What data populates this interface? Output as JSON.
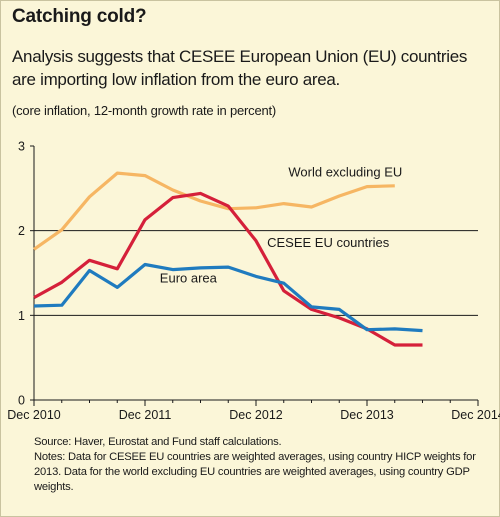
{
  "title": "Catching cold?",
  "subtitle": "Analysis suggests that CESEE European Union (EU) countries are importing low inflation from the euro area.",
  "unit_note": "(core inflation, 12-month growth rate in percent)",
  "footnotes": {
    "source": "Source: Haver, Eurostat and Fund staff calculations.",
    "notes": "Notes:  Data for CESEE EU countries are weighted averages, using country HICP weights for 2013. Data for the world excluding EU countries are weighted averages, using country GDP weights."
  },
  "chart_data": {
    "type": "line",
    "title": "Catching cold?",
    "ylabel": "",
    "xlabel": "",
    "xlim": [
      0,
      48
    ],
    "ylim": [
      0,
      3
    ],
    "x_ticks": [
      {
        "pos": 0,
        "label": "Dec 2010"
      },
      {
        "pos": 12,
        "label": "Dec 2011"
      },
      {
        "pos": 24,
        "label": "Dec 2012"
      },
      {
        "pos": 36,
        "label": "Dec 2013"
      },
      {
        "pos": 48,
        "label": "Dec 2014"
      }
    ],
    "y_ticks": [
      0,
      1,
      2,
      3
    ],
    "gridlines_at": [
      1,
      2
    ],
    "x": [
      0,
      3,
      6,
      9,
      12,
      15,
      18,
      21,
      24,
      27,
      30,
      33,
      36,
      39,
      42
    ],
    "series": [
      {
        "name": "World excluding EU",
        "color": "#f6b663",
        "values": [
          1.78,
          2.01,
          2.4,
          2.68,
          2.65,
          2.48,
          2.35,
          2.26,
          2.27,
          2.32,
          2.28,
          2.41,
          2.52,
          2.53,
          null
        ]
      },
      {
        "name": "CESEE EU countries",
        "color": "#d5203a",
        "values": [
          1.21,
          1.39,
          1.65,
          1.55,
          2.13,
          2.39,
          2.44,
          2.29,
          1.88,
          1.29,
          1.07,
          0.97,
          0.84,
          0.65,
          0.65
        ]
      },
      {
        "name": "Euro area",
        "color": "#1f7bbf",
        "values": [
          1.11,
          1.12,
          1.53,
          1.33,
          1.6,
          1.54,
          1.56,
          1.57,
          1.46,
          1.38,
          1.1,
          1.07,
          0.83,
          0.84,
          0.82
        ]
      }
    ]
  }
}
